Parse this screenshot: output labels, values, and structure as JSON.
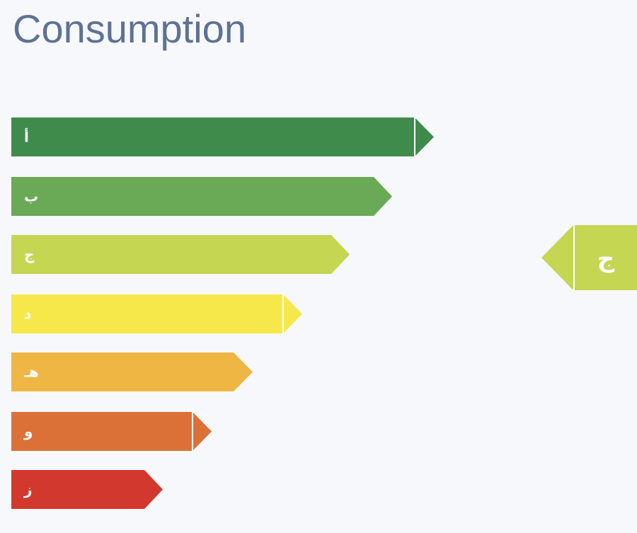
{
  "title": "Consumption",
  "ratings": [
    "أ",
    "ب",
    "ج",
    "د",
    "هـ",
    "و",
    "ز"
  ],
  "current": "ج"
}
